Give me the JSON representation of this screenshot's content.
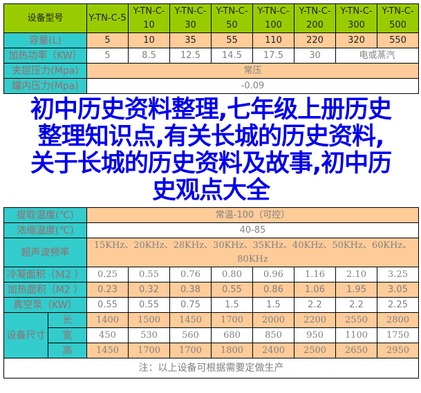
{
  "header": {
    "label": "设备型号",
    "models": [
      "Y-TN-C-5",
      "Y-TN-C-10",
      "Y-TN-C-30",
      "Y-TN-C-50",
      "Y-TN-C-100",
      "Y-TN-C-200",
      "Y-TN-C-300",
      "Y-TN-C-500"
    ]
  },
  "capacity": {
    "label": "容量(L)",
    "values": [
      "5",
      "10",
      "35",
      "55",
      "110",
      "220",
      "320",
      "550"
    ]
  },
  "power": {
    "label": "加热功率（KW）",
    "values": [
      "5",
      "8.5",
      "12.5",
      "14.5",
      "17.5",
      "30"
    ],
    "merged": "电或蒸汽"
  },
  "jacket_pressure": {
    "label": "夹层压力(Mpa)",
    "value": "常压"
  },
  "tank_pressure": {
    "label": "罐内压力(Mpa)",
    "value": "-0.09"
  },
  "extract_temp": {
    "label": "提取温度(℃)",
    "value": "常温-100（可控）"
  },
  "concentrate_temp": {
    "label": "浓缩温度(℃)",
    "value": "40-85"
  },
  "ultrasonic": {
    "label": "超声波频率",
    "value": "15KHz、20KHz、28KHz、30KHz、35KHz、40KHz、50KHz、60KHz、80KHz"
  },
  "condenser_area": {
    "label": "冷凝面积（M2 ）",
    "values": [
      "0.25",
      "0.55",
      "0.76",
      "0.80",
      "0.96",
      "1.16",
      "2.10",
      "3.25"
    ]
  },
  "heating_area": {
    "label": "加热面积（M2 ）",
    "values": [
      "0.23",
      "0.32",
      "0.38",
      "0.55",
      "0.86",
      "1.06",
      "1.95",
      "3.05"
    ]
  },
  "vacuum_pump": {
    "label": "真空泵（KW）",
    "values": [
      "0.55",
      "0.55",
      "0.75",
      "1.5",
      "1.5",
      "2.2",
      "2.2",
      "2.25"
    ]
  },
  "dimensions": {
    "label": "设备尺寸",
    "length_label": "长",
    "width_label": "宽",
    "height_label": "高",
    "length": [
      "1400",
      "1500",
      "1450",
      "1700",
      "2000",
      "2200",
      "2550",
      "2800"
    ],
    "width": [
      "450",
      "530",
      "560",
      "680",
      "850",
      "950",
      "1100",
      "1750"
    ],
    "height": [
      "1450",
      "1700",
      "1700",
      "1800",
      "2400",
      "2500",
      "2650",
      "2950"
    ]
  },
  "note": "注：以上设备可根据需要定做生产",
  "overlay_title": [
    "初中历史资料整理,七年级上册历史",
    "整理知识点,有关长城的历史资料,",
    "关于长城的历史资料及故事,初中历",
    "史观点大全"
  ],
  "colors": {
    "header": "#99cc00",
    "label_column": "#33cccc",
    "peach": "#ffcc99",
    "overlay_text": "#0000ee"
  }
}
